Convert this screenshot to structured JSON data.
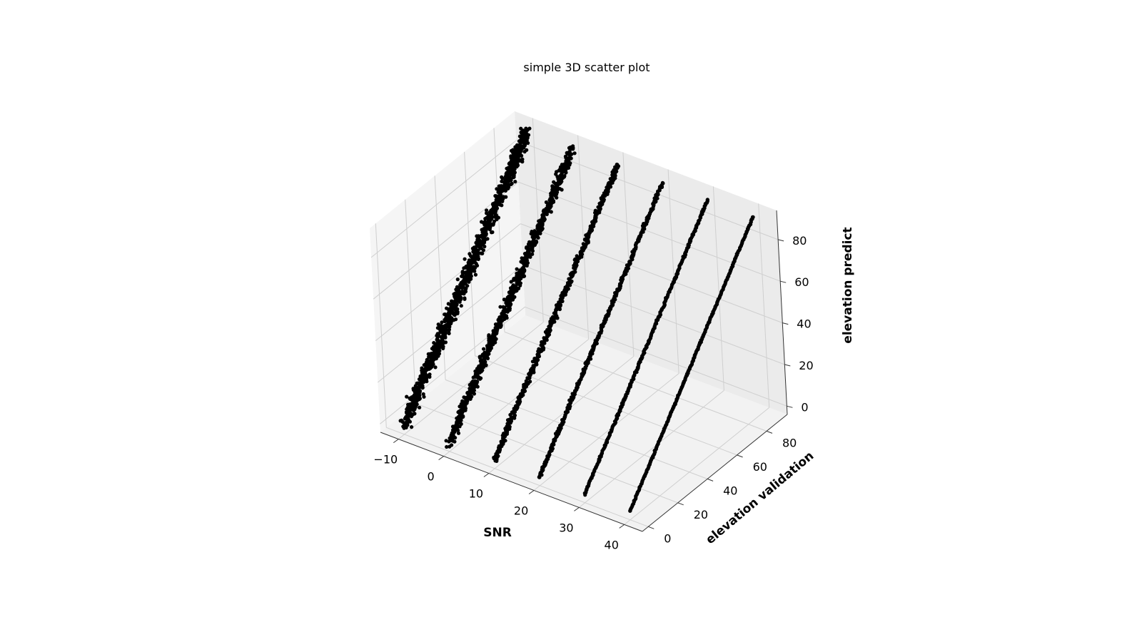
{
  "chart_data": {
    "type": "scatter",
    "title": "simple 3D scatter plot",
    "xlabel": "SNR",
    "ylabel": "elevation validation",
    "zlabel": "elevation predict",
    "xlim": [
      -14,
      44
    ],
    "ylim": [
      -4,
      94
    ],
    "zlim": [
      -4,
      94
    ],
    "x_ticks": [
      "−10",
      "0",
      "10",
      "20",
      "30",
      "40"
    ],
    "x_tick_values": [
      -10,
      0,
      10,
      20,
      30,
      40
    ],
    "y_ticks": [
      "0",
      "20",
      "40",
      "60",
      "80"
    ],
    "y_tick_values": [
      0,
      20,
      40,
      60,
      80
    ],
    "z_ticks": [
      "0",
      "20",
      "40",
      "60",
      "80"
    ],
    "z_tick_values": [
      0,
      20,
      40,
      60,
      80
    ],
    "grid": true,
    "marker_color": "#000000",
    "series": [
      {
        "snr": -10,
        "elevation_range": [
          0,
          90
        ],
        "spread": 2.5
      },
      {
        "snr": 0,
        "elevation_range": [
          0,
          90
        ],
        "spread": 1.8
      },
      {
        "snr": 10,
        "elevation_range": [
          0,
          90
        ],
        "spread": 1.0
      },
      {
        "snr": 20,
        "elevation_range": [
          0,
          90
        ],
        "spread": 0.6
      },
      {
        "snr": 30,
        "elevation_range": [
          0,
          90
        ],
        "spread": 0.35
      },
      {
        "snr": 40,
        "elevation_range": [
          0,
          90
        ],
        "spread": 0.2
      }
    ]
  }
}
